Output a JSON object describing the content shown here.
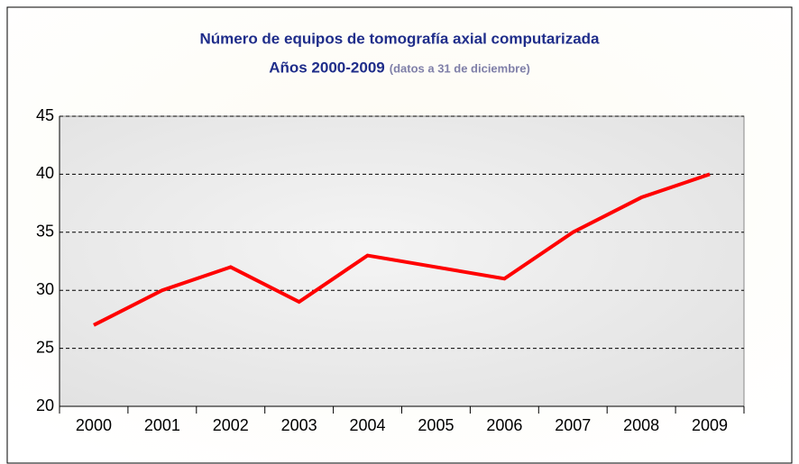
{
  "chart_data": {
    "type": "line",
    "title": "Número de equipos de tomografía axial computarizada",
    "subtitle": "Años 2000-2009",
    "note": "(datos a 31 de diciembre)",
    "categories": [
      "2000",
      "2001",
      "2002",
      "2003",
      "2004",
      "2005",
      "2006",
      "2007",
      "2008",
      "2009"
    ],
    "values": [
      27,
      30,
      32,
      29,
      33,
      32,
      31,
      35,
      38,
      40
    ],
    "color": "#ff0000",
    "ylim": [
      20,
      45
    ],
    "yticks": [
      20,
      25,
      30,
      35,
      40,
      45
    ],
    "grid": true
  }
}
